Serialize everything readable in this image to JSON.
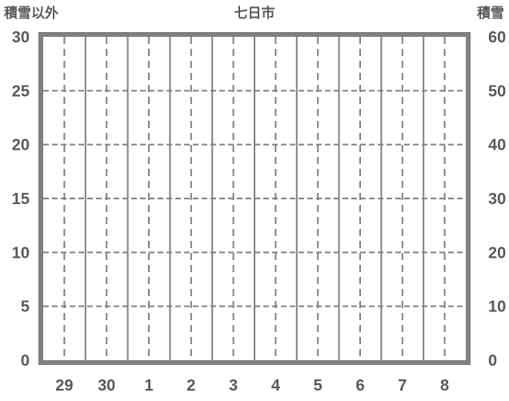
{
  "colors": {
    "background": "#ffffff",
    "grid": "#808080",
    "border": "#808080",
    "text": "#595959"
  },
  "chart_data": {
    "type": "line",
    "title": "七日市",
    "left_axis": {
      "label": "積雪以外",
      "min": 0,
      "max": 30,
      "step": 5,
      "ticks": [
        30,
        25,
        20,
        15,
        10,
        5,
        0
      ]
    },
    "right_axis": {
      "label": "積雪",
      "min": 0,
      "max": 60,
      "step": 10,
      "ticks": [
        60,
        50,
        40,
        30,
        20,
        10,
        0
      ]
    },
    "x_axis": {
      "labels": [
        "29",
        "30",
        "1",
        "2",
        "3",
        "4",
        "5",
        "6",
        "7",
        "8"
      ]
    },
    "series": [],
    "grid": "on",
    "legend": "none"
  }
}
